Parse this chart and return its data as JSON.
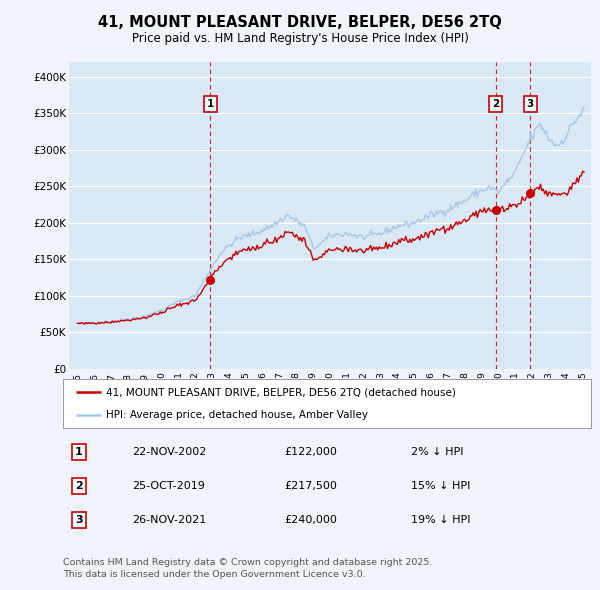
{
  "title": "41, MOUNT PLEASANT DRIVE, BELPER, DE56 2TQ",
  "subtitle": "Price paid vs. HM Land Registry's House Price Index (HPI)",
  "ylim": [
    0,
    420000
  ],
  "yticks": [
    0,
    50000,
    100000,
    150000,
    200000,
    250000,
    300000,
    350000,
    400000
  ],
  "ytick_labels": [
    "£0",
    "£50K",
    "£100K",
    "£150K",
    "£200K",
    "£250K",
    "£300K",
    "£350K",
    "£400K"
  ],
  "background_color": "#f0f4fa",
  "plot_bg_color": "#d8e8f5",
  "grid_color": "#ffffff",
  "red_line_color": "#cc0000",
  "blue_line_color": "#a8c8e8",
  "vline_color": "#cc0000",
  "legend_label_red": "41, MOUNT PLEASANT DRIVE, BELPER, DE56 2TQ (detached house)",
  "legend_label_blue": "HPI: Average price, detached house, Amber Valley",
  "sale_date_nums": [
    2002.9,
    2019.83,
    2021.9
  ],
  "sale_prices": [
    122000,
    217500,
    240000
  ],
  "sale_labels": [
    "1",
    "2",
    "3"
  ],
  "rows": [
    [
      "1",
      "22-NOV-2002",
      "£122,000",
      "2% ↓ HPI"
    ],
    [
      "2",
      "25-OCT-2019",
      "£217,500",
      "15% ↓ HPI"
    ],
    [
      "3",
      "26-NOV-2021",
      "£240,000",
      "19% ↓ HPI"
    ]
  ],
  "footer": "Contains HM Land Registry data © Crown copyright and database right 2025.\nThis data is licensed under the Open Government Licence v3.0."
}
